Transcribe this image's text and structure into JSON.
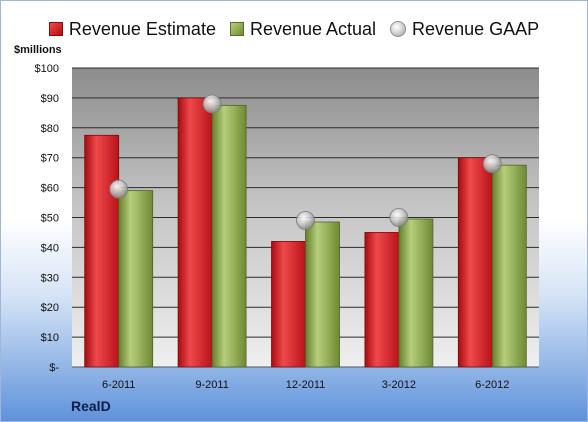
{
  "chart_data": {
    "type": "bar",
    "units_label": "$millions",
    "brand": "RealD",
    "categories": [
      "6-2011",
      "9-2011",
      "12-2011",
      "3-2012",
      "6-2012"
    ],
    "series": [
      {
        "name": "Revenue Estimate",
        "kind": "bar",
        "color": "#d41f26",
        "values": [
          77.5,
          90,
          42,
          45,
          70
        ]
      },
      {
        "name": "Revenue Actual",
        "kind": "bar",
        "color": "#8fac4e",
        "values": [
          59,
          87.5,
          48.5,
          49.5,
          67.5
        ]
      },
      {
        "name": "Revenue GAAP",
        "kind": "marker",
        "color": "#b8b8b8",
        "values": [
          59.5,
          88,
          49,
          50,
          68
        ]
      }
    ],
    "ylim": [
      0,
      100
    ],
    "y_ticks": [
      0,
      10,
      20,
      30,
      40,
      50,
      60,
      70,
      80,
      90,
      100
    ],
    "y_tick_labels": [
      "$-",
      "$10",
      "$20",
      "$30",
      "$40",
      "$50",
      "$60",
      "$70",
      "$80",
      "$90",
      "$100"
    ],
    "grid": true,
    "legend_position": "top"
  }
}
